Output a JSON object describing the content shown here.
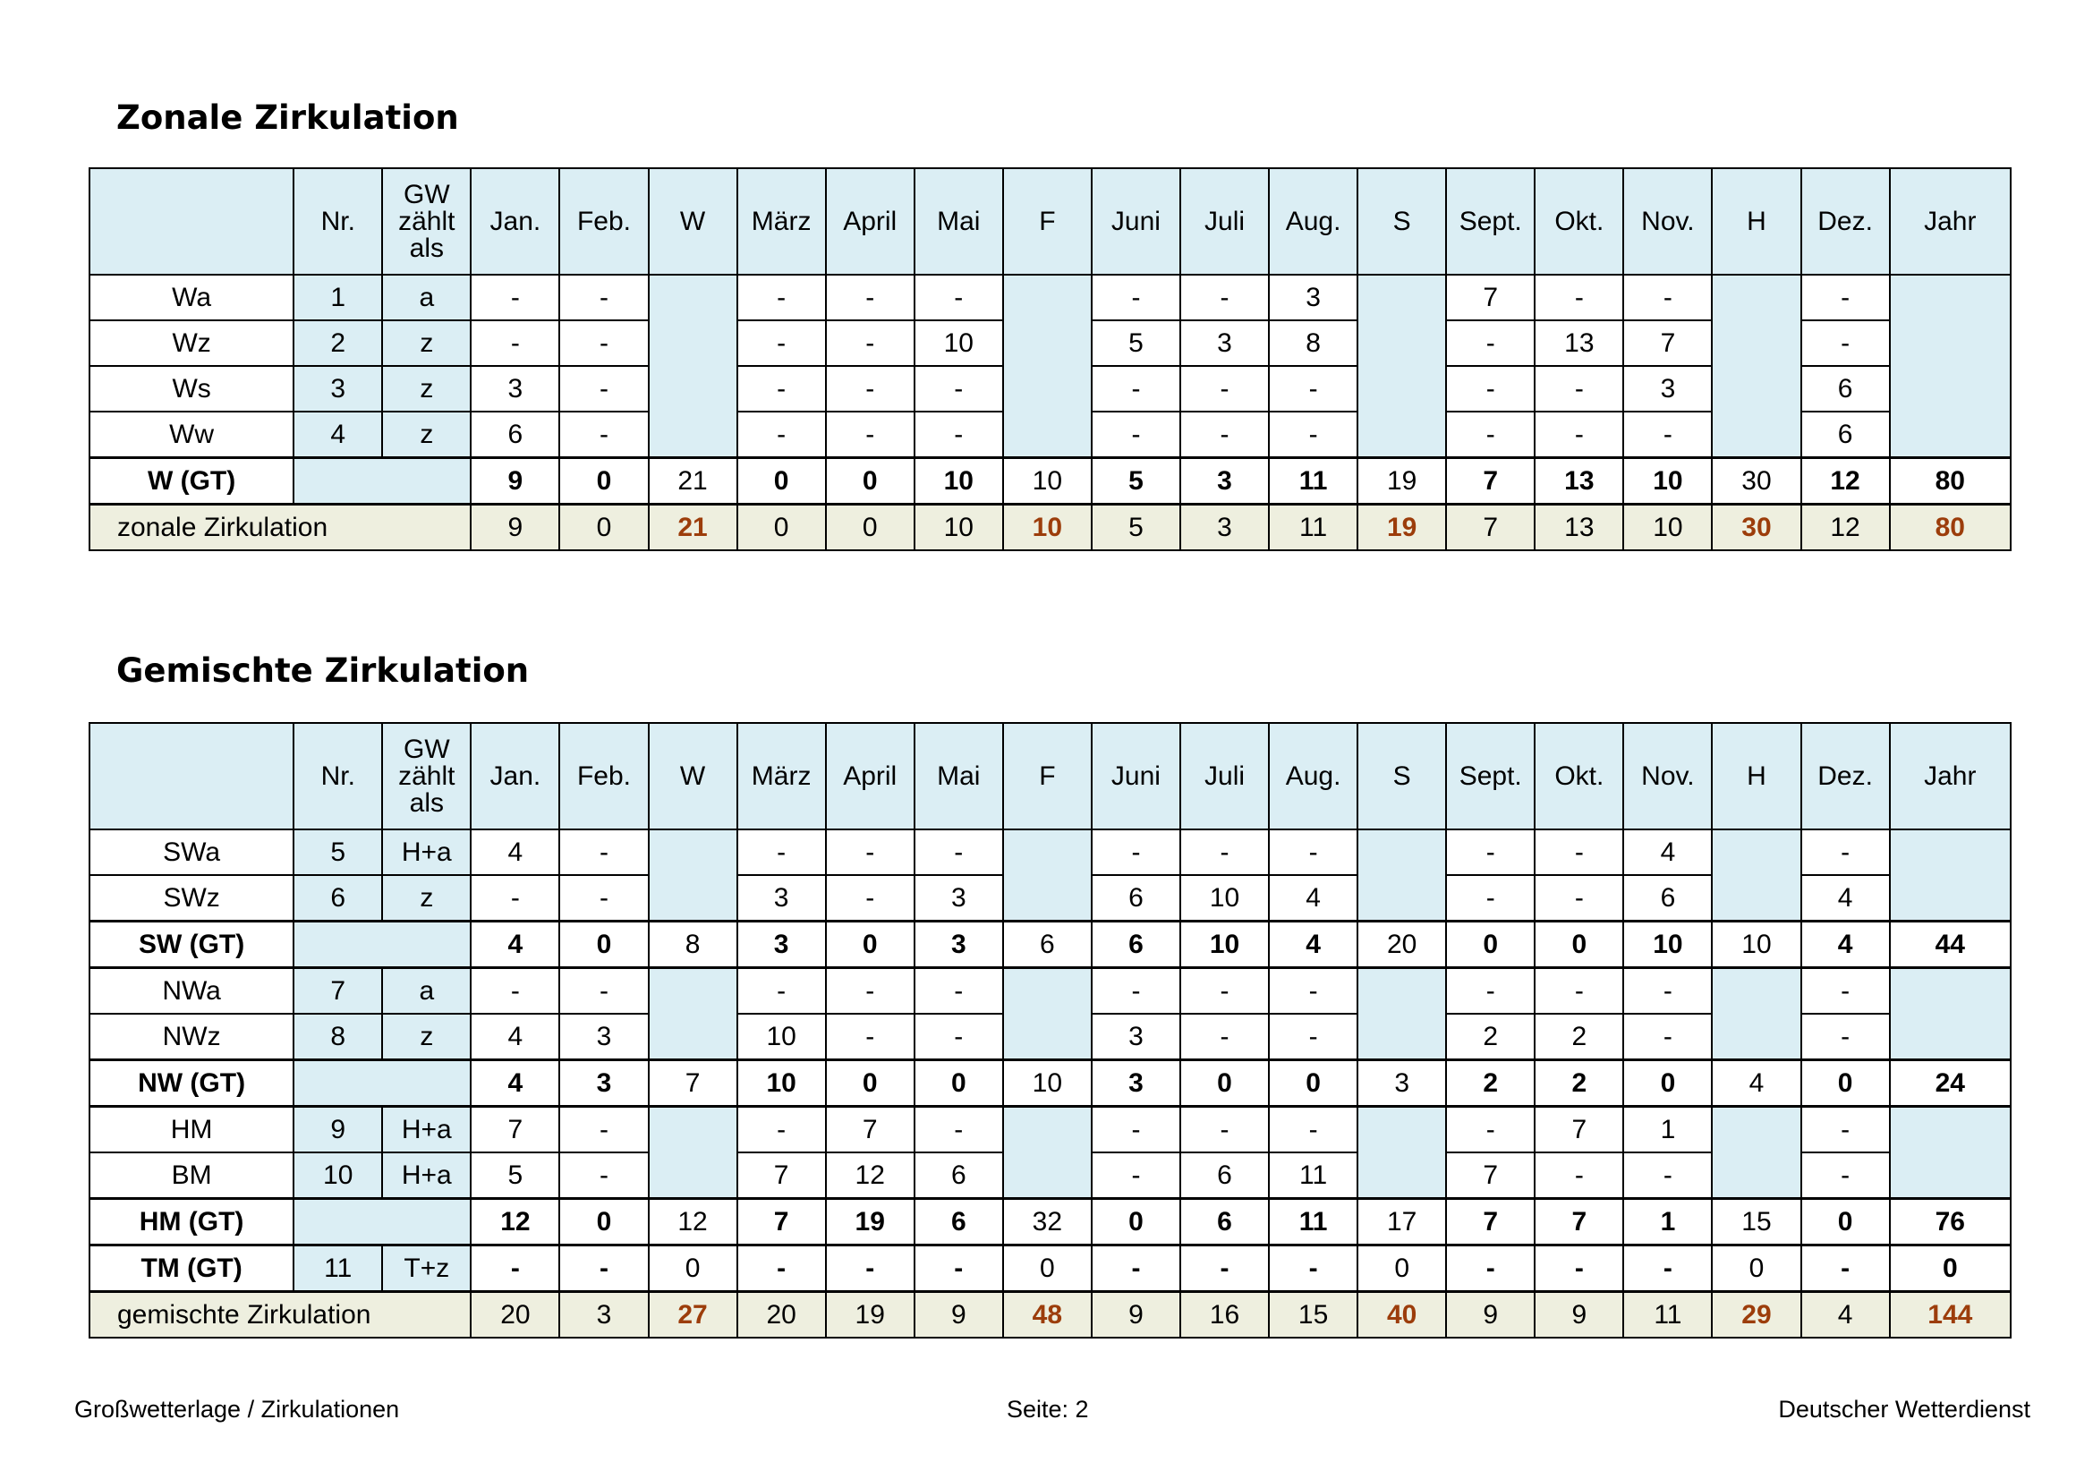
{
  "section1_title": "Zonale Zirkulation",
  "section2_title": "Gemischte Zirkulation",
  "columns": {
    "nr": "Nr.",
    "gw": [
      "GW",
      "zählt",
      "als"
    ],
    "months": [
      "Jan.",
      "Feb.",
      "W",
      "März",
      "April",
      "Mai",
      "F",
      "Juni",
      "Juli",
      "Aug.",
      "S",
      "Sept.",
      "Okt.",
      "Nov.",
      "H",
      "Dez.",
      "Jahr"
    ]
  },
  "table1": {
    "rows": [
      {
        "label": "Wa",
        "nr": "1",
        "gw": "a",
        "v": [
          "-",
          "-",
          "",
          "-",
          "-",
          "-",
          "",
          "-",
          "-",
          "3",
          "",
          "7",
          "-",
          "-",
          "",
          "-",
          ""
        ]
      },
      {
        "label": "Wz",
        "nr": "2",
        "gw": "z",
        "v": [
          "-",
          "-",
          "",
          "-",
          "-",
          "10",
          "",
          "5",
          "3",
          "8",
          "",
          "-",
          "13",
          "7",
          "",
          "-",
          ""
        ]
      },
      {
        "label": "Ws",
        "nr": "3",
        "gw": "z",
        "v": [
          "3",
          "-",
          "",
          "-",
          "-",
          "-",
          "",
          "-",
          "-",
          "-",
          "",
          "-",
          "-",
          "3",
          "",
          "6",
          ""
        ]
      },
      {
        "label": "Ww",
        "nr": "4",
        "gw": "z",
        "v": [
          "6",
          "-",
          "",
          "-",
          "-",
          "-",
          "",
          "-",
          "-",
          "-",
          "",
          "-",
          "-",
          "-",
          "",
          "6",
          ""
        ]
      }
    ],
    "gt": {
      "label": "W (GT)",
      "v": [
        "9",
        "0",
        "21",
        "0",
        "0",
        "10",
        "10",
        "5",
        "3",
        "11",
        "19",
        "7",
        "13",
        "10",
        "30",
        "12",
        "80"
      ]
    },
    "total": {
      "label": "zonale Zirkulation",
      "v": [
        "9",
        "0",
        "21",
        "0",
        "0",
        "10",
        "10",
        "5",
        "3",
        "11",
        "19",
        "7",
        "13",
        "10",
        "30",
        "12",
        "80"
      ]
    }
  },
  "table2": {
    "groups": [
      {
        "rows": [
          {
            "label": "SWa",
            "nr": "5",
            "gw": "H+a",
            "v": [
              "4",
              "-",
              "",
              "-",
              "-",
              "-",
              "",
              "-",
              "-",
              "-",
              "",
              "-",
              "-",
              "4",
              "",
              "-",
              ""
            ]
          },
          {
            "label": "SWz",
            "nr": "6",
            "gw": "z",
            "v": [
              "-",
              "-",
              "",
              "3",
              "-",
              "3",
              "",
              "6",
              "10",
              "4",
              "",
              "-",
              "-",
              "6",
              "",
              "4",
              ""
            ]
          }
        ],
        "gt": {
          "label": "SW (GT)",
          "v": [
            "4",
            "0",
            "8",
            "3",
            "0",
            "3",
            "6",
            "6",
            "10",
            "4",
            "20",
            "0",
            "0",
            "10",
            "10",
            "4",
            "44"
          ]
        }
      },
      {
        "rows": [
          {
            "label": "NWa",
            "nr": "7",
            "gw": "a",
            "v": [
              "-",
              "-",
              "",
              "-",
              "-",
              "-",
              "",
              "-",
              "-",
              "-",
              "",
              "-",
              "-",
              "-",
              "",
              "-",
              ""
            ]
          },
          {
            "label": "NWz",
            "nr": "8",
            "gw": "z",
            "v": [
              "4",
              "3",
              "",
              "10",
              "-",
              "-",
              "",
              "3",
              "-",
              "-",
              "",
              "2",
              "2",
              "-",
              "",
              "-",
              ""
            ]
          }
        ],
        "gt": {
          "label": "NW (GT)",
          "v": [
            "4",
            "3",
            "7",
            "10",
            "0",
            "0",
            "10",
            "3",
            "0",
            "0",
            "3",
            "2",
            "2",
            "0",
            "4",
            "0",
            "24"
          ]
        }
      },
      {
        "rows": [
          {
            "label": "HM",
            "nr": "9",
            "gw": "H+a",
            "v": [
              "7",
              "-",
              "",
              "-",
              "7",
              "-",
              "",
              "-",
              "-",
              "-",
              "",
              "-",
              "7",
              "1",
              "",
              "-",
              ""
            ]
          },
          {
            "label": "BM",
            "nr": "10",
            "gw": "H+a",
            "v": [
              "5",
              "-",
              "",
              "7",
              "12",
              "6",
              "",
              "-",
              "6",
              "11",
              "",
              "7",
              "-",
              "-",
              "",
              "-",
              ""
            ]
          }
        ],
        "gt": {
          "label": "HM (GT)",
          "v": [
            "12",
            "0",
            "12",
            "7",
            "19",
            "6",
            "32",
            "0",
            "6",
            "11",
            "17",
            "7",
            "7",
            "1",
            "15",
            "0",
            "76"
          ]
        }
      }
    ],
    "tm": {
      "label": "TM (GT)",
      "nr": "11",
      "gw": "T+z",
      "v": [
        "-",
        "-",
        "0",
        "-",
        "-",
        "-",
        "0",
        "-",
        "-",
        "-",
        "0",
        "-",
        "-",
        "-",
        "0",
        "-",
        "0"
      ]
    },
    "total": {
      "label": "gemischte Zirkulation",
      "v": [
        "20",
        "3",
        "27",
        "20",
        "19",
        "9",
        "48",
        "9",
        "16",
        "15",
        "40",
        "9",
        "9",
        "11",
        "29",
        "4",
        "144"
      ]
    }
  },
  "footer": {
    "left": "Großwetterlage / Zirkulationen",
    "center": "Seite: 2",
    "right": "Deutscher Wetterdienst"
  },
  "colors": {
    "header_fill": "#dbeef4",
    "total_fill": "#eeefdf",
    "season_total_text": "#9c3d0b"
  }
}
